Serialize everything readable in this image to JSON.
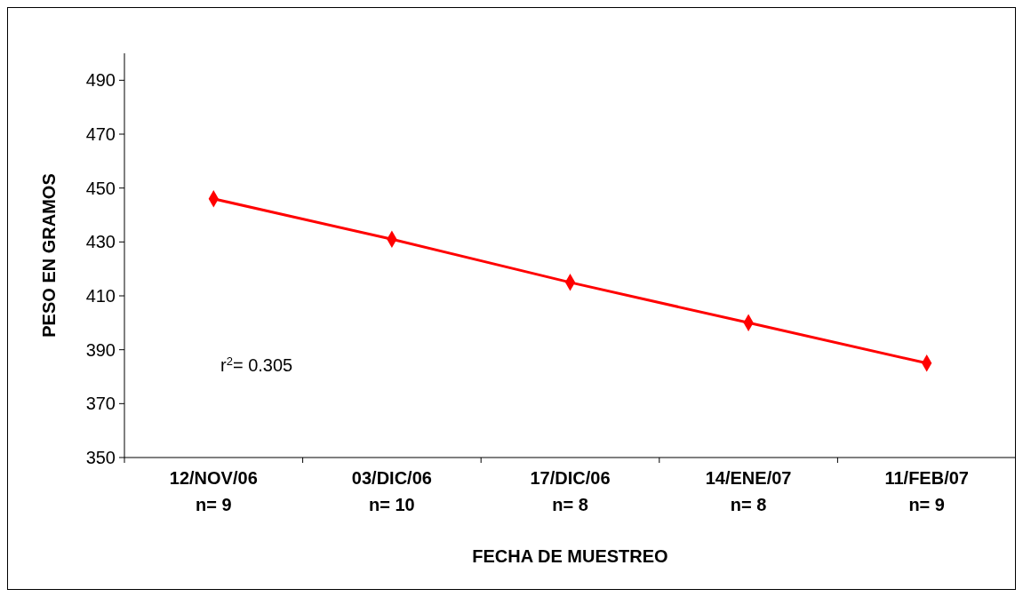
{
  "chart_data": {
    "type": "line",
    "xlabel": "FECHA DE MUESTREO",
    "ylabel": "PESO EN GRAMOS",
    "categories": [
      "12/NOV/06\nn= 9",
      "03/DIC/06\nn= 10",
      "17/DIC/06\nn= 8",
      "14/ENE/07\nn= 8",
      "11/FEB/07\nn= 9"
    ],
    "series": [
      {
        "color": "#ff0000",
        "values": [
          446,
          431,
          415,
          400,
          385
        ]
      }
    ],
    "ylim": [
      350,
      500
    ],
    "yticks": [
      350,
      370,
      390,
      410,
      430,
      450,
      470,
      490
    ],
    "annotations": [
      "r$^{2}$= 0.305"
    ],
    "marker": "diamond",
    "line_style": "solid"
  }
}
